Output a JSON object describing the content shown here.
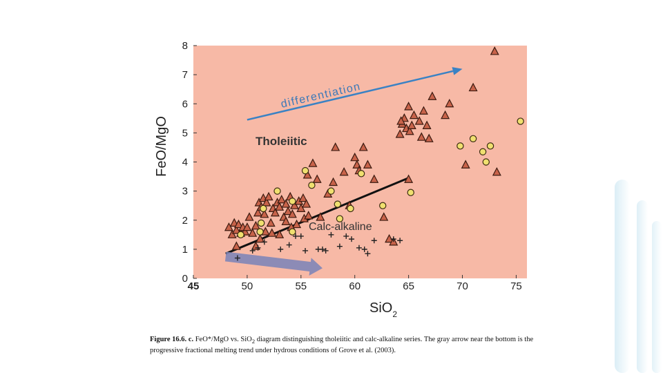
{
  "chart_data": {
    "type": "scatter",
    "title": "",
    "xlabel": "SiO",
    "xlabel_sub": "2",
    "ylabel": "FeO/MgO",
    "xlim": [
      45,
      76
    ],
    "ylim": [
      0,
      8
    ],
    "xticks": [
      45,
      50,
      55,
      60,
      65,
      70,
      75
    ],
    "yticks": [
      0,
      1,
      2,
      3,
      4,
      5,
      6,
      7,
      8
    ],
    "grid": false,
    "background": "#f7b9a6",
    "labels": {
      "tholeiitic": "Tholeiitic",
      "calc_alkaline": "Calc-alkaline",
      "differentiation": "differentiation"
    },
    "divider": [
      [
        48.0,
        0.85
      ],
      [
        65.0,
        3.45
      ]
    ],
    "differentiation_arrow": [
      [
        50.0,
        5.45
      ],
      [
        70.0,
        7.2
      ]
    ],
    "melting_trend_arrow": [
      [
        48.0,
        0.75
      ],
      [
        57.0,
        0.35
      ]
    ],
    "series": [
      {
        "marker": "triangle",
        "color": "#c8634a",
        "points": [
          [
            48.3,
            1.75
          ],
          [
            48.6,
            1.5
          ],
          [
            48.8,
            1.9
          ],
          [
            49.0,
            1.65
          ],
          [
            49.2,
            1.85
          ],
          [
            49.4,
            1.55
          ],
          [
            49.6,
            1.75
          ],
          [
            49.8,
            1.6
          ],
          [
            50.0,
            1.75
          ],
          [
            49.0,
            1.1
          ],
          [
            50.2,
            2.1
          ],
          [
            50.5,
            1.55
          ],
          [
            50.8,
            1.8
          ],
          [
            51.0,
            2.25
          ],
          [
            51.1,
            2.6
          ],
          [
            51.3,
            2.45
          ],
          [
            51.5,
            2.75
          ],
          [
            51.6,
            2.2
          ],
          [
            51.8,
            2.6
          ],
          [
            52.0,
            2.8
          ],
          [
            52.2,
            1.9
          ],
          [
            52.4,
            2.4
          ],
          [
            52.6,
            2.25
          ],
          [
            52.8,
            2.6
          ],
          [
            53.0,
            2.45
          ],
          [
            53.2,
            2.7
          ],
          [
            53.4,
            2.1
          ],
          [
            53.6,
            2.55
          ],
          [
            53.8,
            2.3
          ],
          [
            54.0,
            2.8
          ],
          [
            54.2,
            2.2
          ],
          [
            54.4,
            2.5
          ],
          [
            54.6,
            1.85
          ],
          [
            54.8,
            2.65
          ],
          [
            55.0,
            2.4
          ],
          [
            55.2,
            2.75
          ],
          [
            55.3,
            2.05
          ],
          [
            55.5,
            2.55
          ],
          [
            54.1,
            1.75
          ],
          [
            53.6,
            1.95
          ],
          [
            53.0,
            1.5
          ],
          [
            51.2,
            1.35
          ],
          [
            50.8,
            1.1
          ],
          [
            51.7,
            1.6
          ],
          [
            52.3,
            1.55
          ],
          [
            55.6,
            3.55
          ],
          [
            55.7,
            2.15
          ],
          [
            56.1,
            3.95
          ],
          [
            56.5,
            3.4
          ],
          [
            56.8,
            2.1
          ],
          [
            57.5,
            2.9
          ],
          [
            58.0,
            3.3
          ],
          [
            58.2,
            4.5
          ],
          [
            59.0,
            3.65
          ],
          [
            59.5,
            2.5
          ],
          [
            60.0,
            4.15
          ],
          [
            60.2,
            3.9
          ],
          [
            60.4,
            3.7
          ],
          [
            60.8,
            4.5
          ],
          [
            61.2,
            3.9
          ],
          [
            61.8,
            3.4
          ],
          [
            62.7,
            2.1
          ],
          [
            63.2,
            1.35
          ],
          [
            63.6,
            1.25
          ],
          [
            64.2,
            4.95
          ],
          [
            64.4,
            5.3
          ],
          [
            64.6,
            5.5
          ],
          [
            64.8,
            5.15
          ],
          [
            65.0,
            5.9
          ],
          [
            65.1,
            5.05
          ],
          [
            65.3,
            5.25
          ],
          [
            65.5,
            5.6
          ],
          [
            66.0,
            5.4
          ],
          [
            66.2,
            4.85
          ],
          [
            66.4,
            5.75
          ],
          [
            66.7,
            5.25
          ],
          [
            66.9,
            4.8
          ],
          [
            67.2,
            6.25
          ],
          [
            68.4,
            5.6
          ],
          [
            68.8,
            6.0
          ],
          [
            70.3,
            3.9
          ],
          [
            71.0,
            6.55
          ],
          [
            73.0,
            7.8
          ],
          [
            73.2,
            3.65
          ],
          [
            64.3,
            5.4
          ],
          [
            65.0,
            3.4
          ]
        ]
      },
      {
        "marker": "circle",
        "color": "#f0e070",
        "points": [
          [
            49.4,
            1.5
          ],
          [
            51.2,
            1.6
          ],
          [
            51.3,
            1.9
          ],
          [
            52.8,
            3.0
          ],
          [
            54.2,
            2.65
          ],
          [
            55.4,
            3.7
          ],
          [
            56.0,
            3.2
          ],
          [
            57.8,
            3.0
          ],
          [
            58.4,
            2.55
          ],
          [
            58.6,
            2.05
          ],
          [
            59.6,
            2.4
          ],
          [
            60.6,
            3.6
          ],
          [
            62.6,
            2.5
          ],
          [
            65.2,
            2.95
          ],
          [
            69.8,
            4.55
          ],
          [
            71.0,
            4.8
          ],
          [
            71.9,
            4.35
          ],
          [
            72.2,
            4.0
          ],
          [
            72.6,
            4.55
          ],
          [
            75.4,
            5.4
          ],
          [
            54.2,
            1.6
          ],
          [
            51.5,
            2.4
          ]
        ]
      },
      {
        "marker": "plus",
        "color": "#222222",
        "points": [
          [
            49.1,
            0.7
          ],
          [
            50.5,
            0.95
          ],
          [
            51.6,
            1.25
          ],
          [
            53.1,
            1.0
          ],
          [
            53.9,
            1.15
          ],
          [
            54.5,
            1.45
          ],
          [
            55.0,
            1.45
          ],
          [
            55.4,
            0.95
          ],
          [
            56.6,
            1.0
          ],
          [
            57.0,
            1.0
          ],
          [
            57.8,
            1.5
          ],
          [
            58.6,
            1.1
          ],
          [
            59.2,
            1.45
          ],
          [
            59.7,
            1.35
          ],
          [
            60.4,
            1.05
          ],
          [
            60.9,
            1.0
          ],
          [
            61.2,
            0.85
          ],
          [
            61.8,
            1.3
          ],
          [
            63.6,
            1.35
          ],
          [
            64.2,
            1.3
          ],
          [
            57.3,
            0.95
          ],
          [
            51.0,
            1.05
          ]
        ]
      }
    ]
  },
  "caption": {
    "prefix": "Figure 16.6. c.",
    "part1": " FeO*/MgO vs. SiO",
    "sub": "2",
    "part2": " diagram distinguishing tholeiitic and calc-alkaline series. The gray arrow near the bottom is the progressive fractional melting trend under hydrous conditions of Grove et al. (2003)."
  }
}
